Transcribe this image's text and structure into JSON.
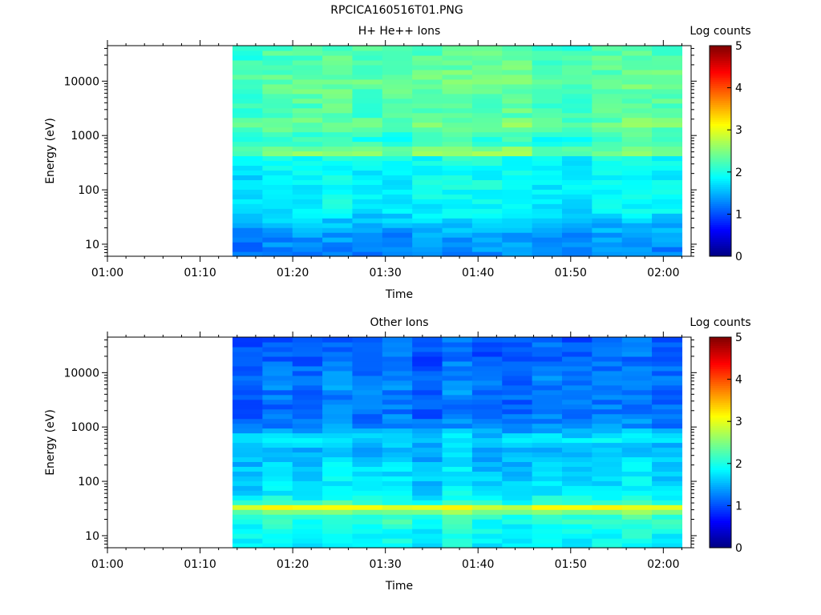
{
  "figure": {
    "title": "RPCICA160516T01.PNG"
  },
  "chart_data": [
    {
      "type": "heatmap",
      "title": "H+ He++ Ions",
      "xlabel": "Time",
      "ylabel": "Energy (eV)",
      "x_ticks": [
        "01:00",
        "01:10",
        "01:20",
        "01:30",
        "01:40",
        "01:50",
        "02:00"
      ],
      "y_ticks": [
        "10",
        "100",
        "1000",
        "10000"
      ],
      "y_scale": "log",
      "ylim": [
        6,
        45000
      ],
      "xlim": [
        "01:00",
        "02:03"
      ],
      "data_start": "01:13.5",
      "data_end": "02:02",
      "colorbar": {
        "label": "Log counts",
        "ticks": [
          "0",
          "1",
          "2",
          "3",
          "4",
          "5"
        ],
        "range": [
          0,
          5
        ]
      },
      "profile_log_energy": [
        0.8,
        1.0,
        1.2,
        1.4,
        1.6,
        1.8,
        2.0,
        2.2,
        2.4,
        2.6,
        2.7,
        2.8,
        2.9,
        3.0,
        3.1,
        3.2,
        3.4,
        3.6,
        3.8,
        4.0,
        4.2,
        4.4,
        4.65
      ],
      "profile_log_counts": [
        1.25,
        1.3,
        1.35,
        1.55,
        1.75,
        1.85,
        1.85,
        1.85,
        1.85,
        1.9,
        2.7,
        2.2,
        2.05,
        2.1,
        2.25,
        2.4,
        2.2,
        2.25,
        2.3,
        2.35,
        2.3,
        2.25,
        2.2
      ]
    },
    {
      "type": "heatmap",
      "title": "Other Ions",
      "xlabel": "Time",
      "ylabel": "Energy (eV)",
      "x_ticks": [
        "01:00",
        "01:10",
        "01:20",
        "01:30",
        "01:40",
        "01:50",
        "02:00"
      ],
      "y_ticks": [
        "10",
        "100",
        "1000",
        "10000"
      ],
      "y_scale": "log",
      "ylim": [
        6,
        45000
      ],
      "xlim": [
        "01:00",
        "02:03"
      ],
      "data_start": "01:13.5",
      "data_end": "02:02",
      "colorbar": {
        "label": "Log counts",
        "ticks": [
          "0",
          "1",
          "2",
          "3",
          "4",
          "5"
        ],
        "range": [
          0,
          5
        ]
      },
      "profile_log_energy": [
        0.8,
        1.0,
        1.2,
        1.4,
        1.5,
        1.55,
        1.6,
        1.8,
        2.0,
        2.2,
        2.4,
        2.6,
        2.8,
        3.0,
        3.2,
        3.4,
        3.6,
        3.8,
        4.0,
        4.2,
        4.4,
        4.65
      ],
      "profile_log_counts": [
        1.85,
        1.9,
        2.0,
        2.2,
        3.1,
        2.9,
        2.1,
        1.75,
        1.7,
        1.7,
        1.6,
        1.5,
        1.8,
        1.3,
        1.2,
        1.15,
        1.2,
        1.25,
        1.2,
        1.1,
        1.1,
        1.05
      ]
    }
  ]
}
